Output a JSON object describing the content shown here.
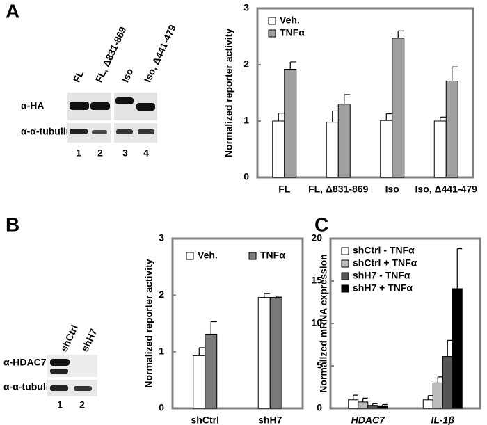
{
  "panel_labels": [
    "A",
    "B",
    "C"
  ],
  "blots": [
    {
      "lanes": [
        "FL",
        "FL, Δ831-869",
        "Iso",
        "Iso, Δ441-479"
      ],
      "rows": [
        "α-HA",
        "α-α-tubulin"
      ],
      "lane_numbers": [
        "1",
        "2",
        "3",
        "4"
      ]
    },
    {
      "lanes": [
        "shCtrl",
        "shH7"
      ],
      "rows": [
        "α-HDAC7",
        "α-α-tubulin"
      ],
      "lane_numbers": [
        "1",
        "2"
      ]
    }
  ],
  "chart_data": [
    {
      "type": "bar",
      "y_label": "Normalized reporter activity",
      "categories": [
        "FL",
        "FL, Δ831-869",
        "Iso",
        "Iso, Δ441-479"
      ],
      "series": [
        {
          "name": "Veh.",
          "color": "#ffffff",
          "values": [
            1.0,
            0.98,
            1.01,
            1.0
          ],
          "errors": [
            0.14,
            0.2,
            0.12,
            0.07
          ]
        },
        {
          "name": "TNFα",
          "color": "#a0a0a0",
          "values": [
            1.92,
            1.3,
            2.47,
            1.71
          ],
          "errors": [
            0.13,
            0.17,
            0.13,
            0.25
          ]
        }
      ],
      "ylim": [
        0,
        3
      ],
      "yticks": [
        0,
        1,
        2,
        3
      ],
      "legend": "upper left"
    },
    {
      "type": "bar",
      "y_label": "Normalized reporter activity",
      "categories": [
        "shCtrl",
        "shH7"
      ],
      "series": [
        {
          "name": "Veh.",
          "color": "#ffffff",
          "values": [
            0.93,
            1.96
          ],
          "errors": [
            0.14,
            0.07
          ]
        },
        {
          "name": "TNFα",
          "color": "#7a7a7a",
          "values": [
            1.31,
            1.96
          ],
          "errors": [
            0.22,
            0.02
          ]
        }
      ],
      "ylim": [
        0,
        3
      ],
      "yticks": [
        0,
        1,
        2,
        3
      ],
      "legend": "upper left"
    },
    {
      "type": "bar",
      "y_label": "Normalized mRNA expression",
      "categories": [
        "HDAC7",
        "IL-1β"
      ],
      "series": [
        {
          "name": "shCtrl - TNFα",
          "color": "#ffffff",
          "values": [
            1.0,
            1.0
          ],
          "errors": [
            0.55,
            0.5
          ]
        },
        {
          "name": "shCtrl + TNFα",
          "color": "#bbbbbb",
          "values": [
            0.75,
            3.0
          ],
          "errors": [
            0.45,
            0.7
          ]
        },
        {
          "name": "shH7 - TNFα",
          "color": "#555555",
          "values": [
            0.35,
            6.1
          ],
          "errors": [
            0.2,
            1.9
          ]
        },
        {
          "name": "shH7 + TNFα",
          "color": "#000000",
          "values": [
            0.3,
            14.1
          ],
          "errors": [
            0.15,
            4.7
          ]
        }
      ],
      "ylim": [
        0,
        20
      ],
      "yticks": [
        0,
        5,
        10,
        15,
        20
      ],
      "legend": "upper left"
    }
  ]
}
